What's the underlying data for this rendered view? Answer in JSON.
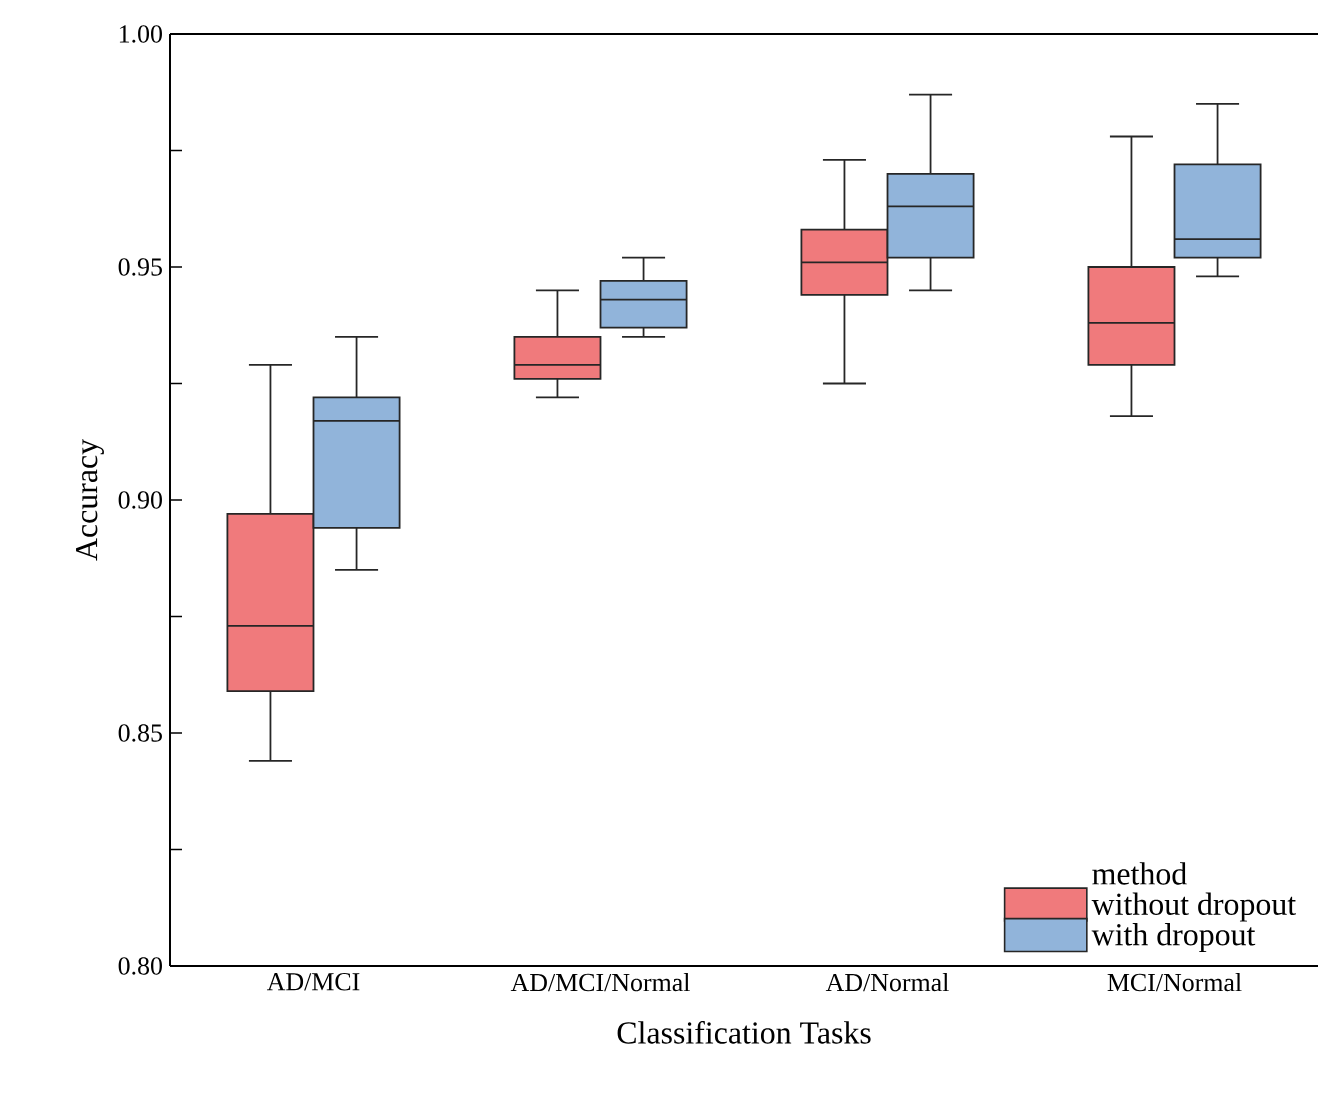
{
  "chart_data": {
    "type": "box",
    "xlabel": "Classification Tasks",
    "ylabel": "Accuracy",
    "legend_title": "method",
    "legend": "bottom right",
    "categories": [
      "AD/MCI",
      "AD/MCI/Normal",
      "AD/Normal",
      "MCI/Normal"
    ],
    "ylim": [
      0.8,
      1.0
    ],
    "yticks": [
      {
        "value": 0.8,
        "label": "0.80"
      },
      {
        "value": 0.825,
        "label": null
      },
      {
        "value": 0.85,
        "label": "0.85"
      },
      {
        "value": 0.875,
        "label": null
      },
      {
        "value": 0.9,
        "label": "0.90"
      },
      {
        "value": 0.925,
        "label": null
      },
      {
        "value": 0.95,
        "label": "0.95"
      },
      {
        "value": 0.975,
        "label": null
      },
      {
        "value": 1.0,
        "label": "1.00"
      }
    ],
    "series": [
      {
        "name": "without dropout",
        "color": "#f07a7c",
        "boxes": [
          {
            "low": 0.844,
            "q1": 0.859,
            "median": 0.873,
            "q3": 0.897,
            "high": 0.929
          },
          {
            "low": 0.922,
            "q1": 0.926,
            "median": 0.929,
            "q3": 0.935,
            "high": 0.945
          },
          {
            "low": 0.925,
            "q1": 0.944,
            "median": 0.951,
            "q3": 0.958,
            "high": 0.973
          },
          {
            "low": 0.918,
            "q1": 0.929,
            "median": 0.938,
            "q3": 0.95,
            "high": 0.978
          }
        ]
      },
      {
        "name": "with dropout",
        "color": "#91b4da",
        "boxes": [
          {
            "low": 0.885,
            "q1": 0.894,
            "median": 0.917,
            "q3": 0.922,
            "high": 0.935
          },
          {
            "low": 0.935,
            "q1": 0.937,
            "median": 0.943,
            "q3": 0.947,
            "high": 0.952
          },
          {
            "low": 0.945,
            "q1": 0.952,
            "median": 0.963,
            "q3": 0.97,
            "high": 0.987
          },
          {
            "low": 0.948,
            "q1": 0.952,
            "median": 0.956,
            "q3": 0.972,
            "high": 0.985
          }
        ]
      }
    ]
  }
}
